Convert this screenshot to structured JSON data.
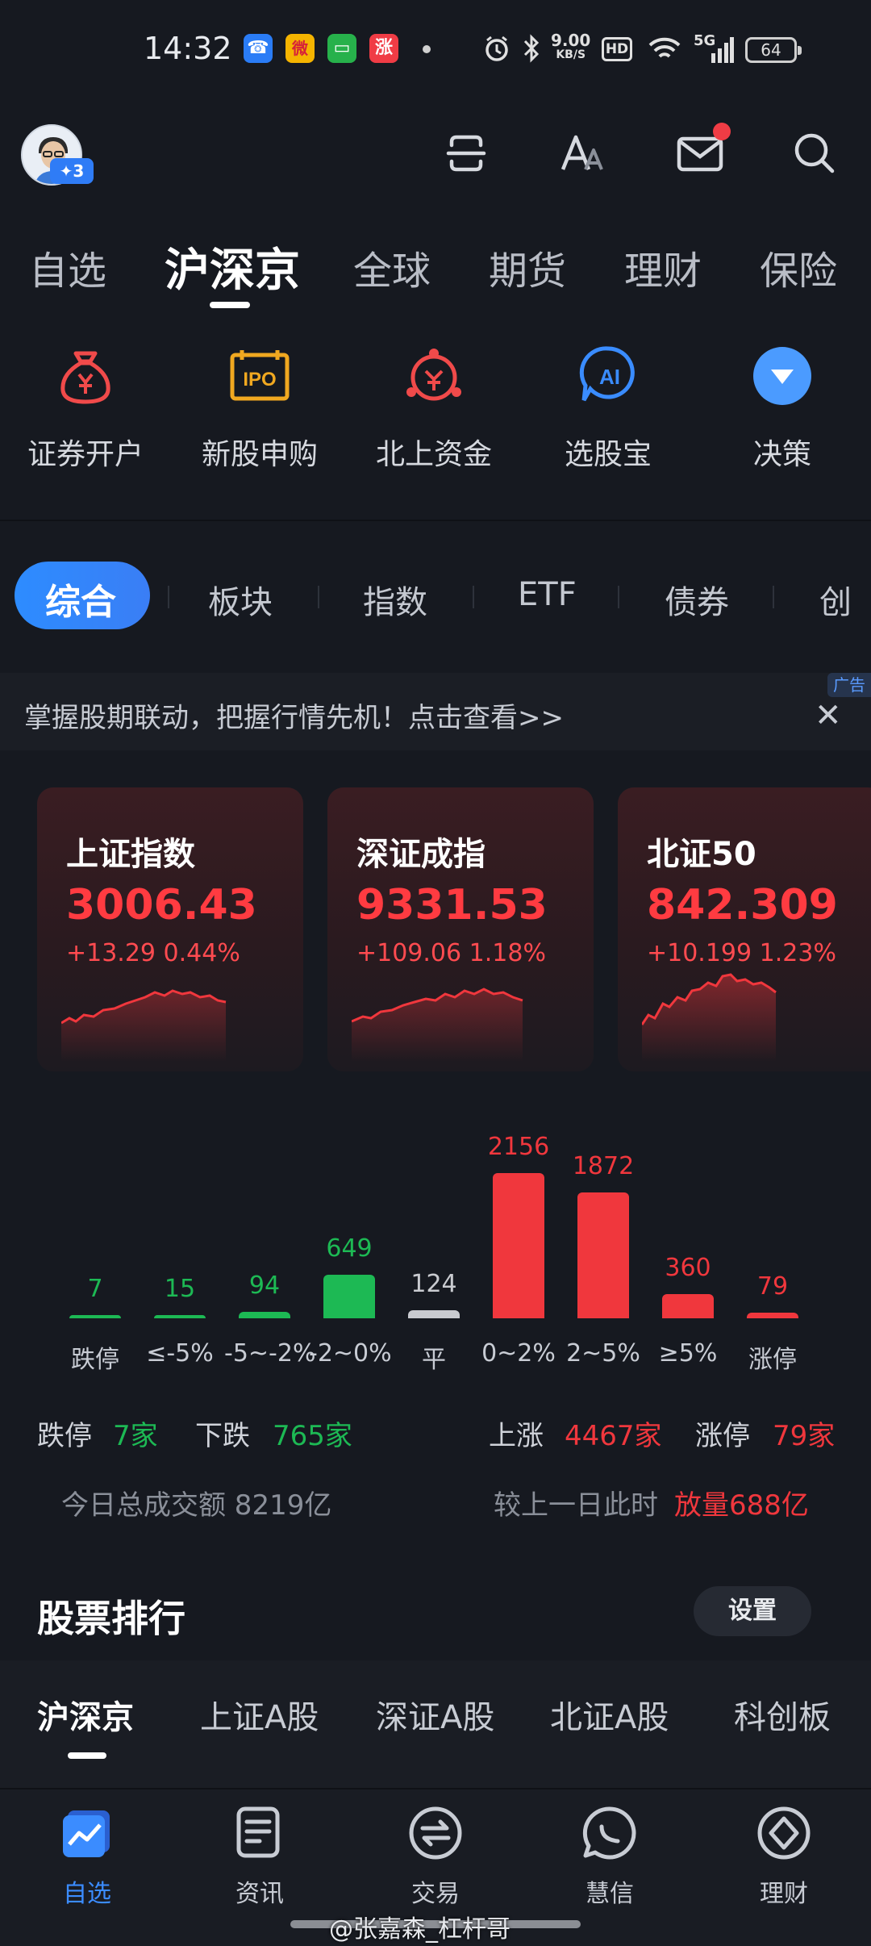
{
  "status_bar": {
    "time": "14:32",
    "apps": [
      {
        "name": "phone-app-icon",
        "glyph": "☎",
        "color": "#2a7cf6"
      },
      {
        "name": "weibo-app-icon",
        "glyph": "微",
        "color": "#f5b400"
      },
      {
        "name": "messages-app-icon",
        "glyph": "▭",
        "color": "#27b14b"
      },
      {
        "name": "zhangting-app-icon",
        "glyph": "涨",
        "color": "#f03c45"
      }
    ],
    "net_speed": "9.00",
    "net_unit": "KB/S",
    "hd_label": "HD",
    "signal_label": "5G",
    "battery": "64"
  },
  "header": {
    "avatar_badge": "✦3"
  },
  "top_tabs": [
    "自选",
    "沪深京",
    "全球",
    "期货",
    "理财",
    "保险"
  ],
  "top_tab_active": "沪深京",
  "features": [
    {
      "label": "证券开户",
      "icon": "money-bag-icon"
    },
    {
      "label": "新股申购",
      "icon": "ipo-icon"
    },
    {
      "label": "北上资金",
      "icon": "northbound-funds-icon"
    },
    {
      "label": "选股宝",
      "icon": "ai-stock-picker-icon"
    },
    {
      "label": "决策",
      "icon": "decision-icon"
    }
  ],
  "sub_tabs": [
    "综合",
    "板块",
    "指数",
    "ETF",
    "债券",
    "创"
  ],
  "banner": {
    "text": "掌握股期联动，把握行情先机！点击查看>>",
    "ad_tag": "广告",
    "close": "✕"
  },
  "indices": [
    {
      "name": "上证指数",
      "value": "3006.43",
      "change": "+13.29  0.44%"
    },
    {
      "name": "深证成指",
      "value": "9331.53",
      "change": "+109.06  1.18%"
    },
    {
      "name": "北证50",
      "value": "842.309",
      "change": "+10.199  1.23%"
    }
  ],
  "colors": {
    "up": "#f0373d",
    "down": "#1db954",
    "flat": "#c9cbd0",
    "accent": "#2d8cff"
  },
  "chart_data": {
    "type": "bar",
    "categories": [
      "跌停",
      "≤-5%",
      "-5~-2%",
      "-2~0%",
      "平",
      "0~2%",
      "2~5%",
      "≥5%",
      "涨停"
    ],
    "values": [
      7,
      15,
      94,
      649,
      124,
      2156,
      1872,
      360,
      79
    ],
    "value_labels": [
      "7",
      "15",
      "94",
      "649",
      "124",
      "2156",
      "1872",
      "360",
      "79"
    ],
    "bar_colors": [
      "#1db954",
      "#1db954",
      "#1db954",
      "#1db954",
      "#c9cbd0",
      "#f0373d",
      "#f0373d",
      "#f0373d",
      "#f0373d"
    ],
    "grid": false
  },
  "summary": {
    "limit_down_label": "跌停",
    "limit_down_value": "7家",
    "down_label": "下跌",
    "down_value": "765家",
    "up_label": "上涨",
    "up_value": "4467家",
    "limit_up_label": "涨停",
    "limit_up_value": "79家",
    "turnover_label": "今日总成交额 8219亿",
    "compare_label": "较上一日此时",
    "compare_value": "放量688亿"
  },
  "ranking": {
    "title": "股票排行",
    "settings_label": "设置",
    "tabs": [
      "沪深京",
      "上证A股",
      "深证A股",
      "北证A股",
      "科创板"
    ]
  },
  "bottom_nav": [
    {
      "label": "自选",
      "icon": "watchlist-icon"
    },
    {
      "label": "资讯",
      "icon": "news-icon"
    },
    {
      "label": "交易",
      "icon": "trade-icon"
    },
    {
      "label": "慧信",
      "icon": "chat-icon"
    },
    {
      "label": "理财",
      "icon": "wealth-icon"
    }
  ],
  "watermark": "@张嘉森_杠杆哥"
}
